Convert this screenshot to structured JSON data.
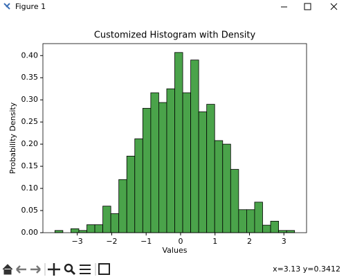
{
  "window": {
    "title": "Figure 1",
    "status": "x=3.13 y=0.3412"
  },
  "chart_data": {
    "type": "histogram",
    "title": "Customized Histogram with Density",
    "x_label": "Values",
    "y_label": "Probability Density",
    "bins": [
      -3.65,
      -3.418,
      -3.186,
      -2.954,
      -2.722,
      -2.49,
      -2.258,
      -2.026,
      -1.794,
      -1.562,
      -1.33,
      -1.098,
      -0.866,
      -0.634,
      -0.402,
      -0.17,
      0.062,
      0.294,
      0.526,
      0.758,
      0.99,
      1.222,
      1.454,
      1.686,
      1.918,
      2.15,
      2.382,
      2.614,
      2.846,
      3.078,
      3.31
    ],
    "values": [
      0.005,
      0,
      0.009,
      0.005,
      0.018,
      0.018,
      0.06,
      0.043,
      0.12,
      0.173,
      0.212,
      0.281,
      0.316,
      0.294,
      0.325,
      0.407,
      0.316,
      0.39,
      0.273,
      0.29,
      0.208,
      0.2,
      0.143,
      0.052,
      0.052,
      0.069,
      0.017,
      0.026,
      0.005,
      0.005
    ],
    "color": "#4aa34a",
    "edgecolor": "#000000",
    "xlim": [
      -3.998,
      3.658
    ],
    "ylim": [
      0,
      0.427
    ],
    "xticks": [
      {
        "value": -3,
        "label": "−3"
      },
      {
        "value": -2,
        "label": "−2"
      },
      {
        "value": -1,
        "label": "−1"
      },
      0,
      1,
      2,
      3
    ],
    "yticks": [
      {
        "value": 0,
        "label": "0.00"
      },
      {
        "value": 0.05,
        "label": "0.05"
      },
      {
        "value": 0.1,
        "label": "0.10"
      },
      {
        "value": 0.15,
        "label": "0.15"
      },
      {
        "value": 0.2,
        "label": "0.20"
      },
      {
        "value": 0.25,
        "label": "0.25"
      },
      {
        "value": 0.3,
        "label": "0.30"
      },
      {
        "value": 0.35,
        "label": "0.35"
      },
      {
        "value": 0.4,
        "label": "0.40"
      }
    ],
    "grid": false
  }
}
